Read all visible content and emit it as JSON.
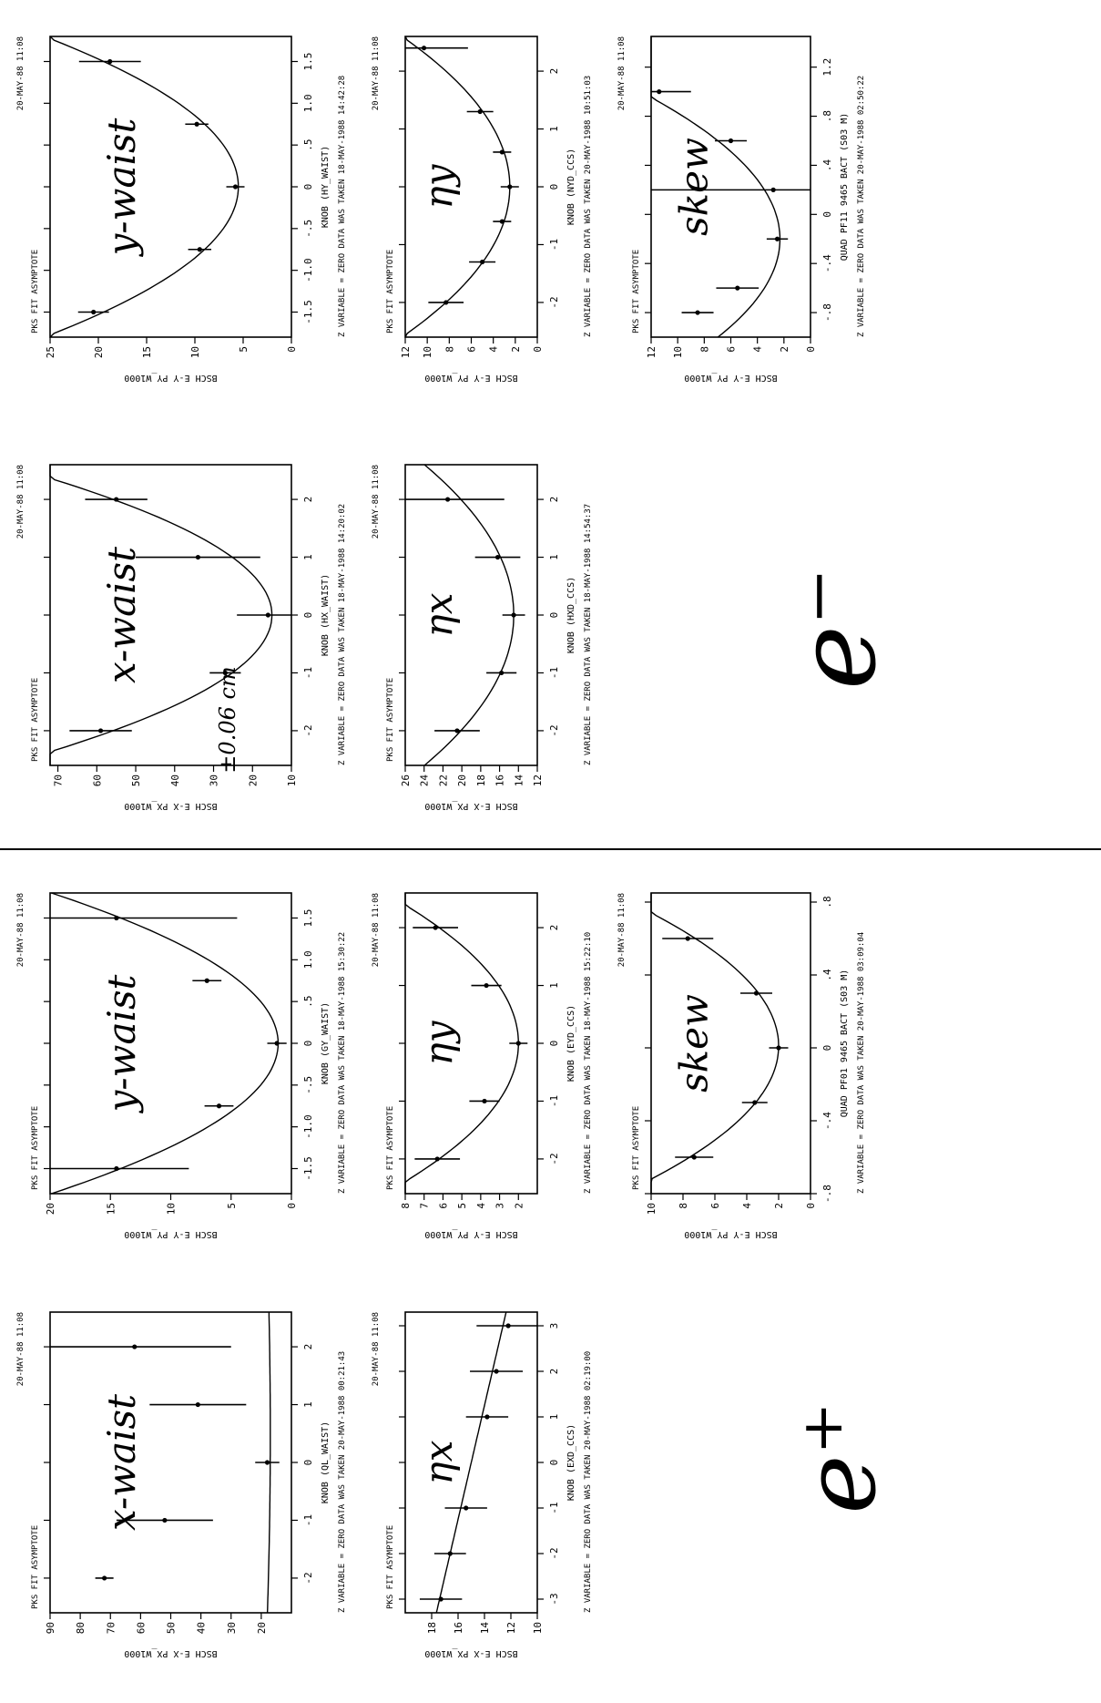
{
  "colors": {
    "ink": "#000000",
    "paper": "#ffffff"
  },
  "notes": {
    "electron": "e⁻",
    "positron": "e⁺",
    "correction": "±0.06 cm"
  },
  "chart_data": [
    {
      "id": "p1",
      "type": "scatter",
      "note": "x-waist",
      "fit": "parabola",
      "fit_label": "PKS FIT ASYMPTOTE",
      "xlabel": "KNOB (QL_WAIST)",
      "ylabel": "BSCH E-X PX_W1000",
      "xlim": [
        -2.6,
        2.6
      ],
      "ylim": [
        10,
        90
      ],
      "xticks": [
        "-2",
        "-1",
        "0",
        "1",
        "2"
      ],
      "yticks": [
        "90",
        "80",
        "70",
        "60",
        "50",
        "40",
        "30",
        "20"
      ],
      "x": [
        -2,
        -1,
        0,
        1,
        2
      ],
      "y": [
        72,
        52,
        18,
        41,
        62
      ],
      "err": [
        0,
        4,
        1,
        4,
        8
      ],
      "curve": [
        0.1,
        0.5,
        17
      ],
      "footer": "Z VARIABLE = ZERO   DATA WAS TAKEN  20-MAY-1988 00:21:43",
      "stamp": "20-MAY-88 11:08"
    },
    {
      "id": "p2",
      "type": "scatter",
      "note": "ηx",
      "fit": "line",
      "fit_label": "PKS FIT ASYMPTOTE",
      "xlabel": "KNOB (EXD_CCS)",
      "ylabel": "BSCH E-X PX_W1000",
      "xlim": [
        -3.3,
        3.3
      ],
      "ylim": [
        10,
        20
      ],
      "xticks": [
        "-3",
        "-2",
        "-1",
        "0",
        "1",
        "2",
        "3"
      ],
      "yticks": [
        "18",
        "16",
        "14",
        "12",
        "10"
      ],
      "x": [
        -3,
        -2,
        -1,
        1,
        2,
        3
      ],
      "y": [
        17.3,
        16.6,
        15.4,
        13.8,
        13.1,
        12.2
      ],
      "err": [
        0.4,
        0.3,
        0.4,
        0.4,
        0.5,
        0.6
      ],
      "curve": [
        0,
        -0.8,
        15
      ],
      "footer": "Z VARIABLE = ZERO   DATA WAS TAKEN  20-MAY-1988 02:19:00",
      "stamp": "20-MAY-88 11:08"
    },
    {
      "id": "p3",
      "type": "scatter",
      "note": "y-waist",
      "fit": "parabola",
      "fit_label": "PKS FIT ASYMPTOTE",
      "xlabel": "KNOB (GY_WAIST)",
      "ylabel": "BSCH E-Y PY_W1000",
      "xlim": [
        -1.8,
        1.8
      ],
      "ylim": [
        0,
        20
      ],
      "xticks": [
        "-1.5",
        "-1.0",
        "-.5",
        "0",
        ".5",
        "1.0",
        "1.5"
      ],
      "yticks": [
        "20",
        "15",
        "10",
        "5",
        "0"
      ],
      "x": [
        -1.5,
        -0.75,
        0,
        0.75,
        1.5
      ],
      "y": [
        14.5,
        6,
        1.2,
        7,
        14.5
      ],
      "err": [
        1.5,
        0.3,
        0.2,
        0.3,
        2.5
      ],
      "curve": [
        5.8,
        0,
        1.1
      ],
      "footer": "Z VARIABLE = ZERO   DATA WAS TAKEN  18-MAY-1988 15:30:22",
      "stamp": "20-MAY-88 11:08"
    },
    {
      "id": "p4",
      "type": "scatter",
      "note": "ηy",
      "fit": "parabola",
      "fit_label": "PKS FIT ASYMPTOTE",
      "xlabel": "KNOB (EYD_CCS)",
      "ylabel": "BSCH E-Y PY_W1000",
      "xlim": [
        -2.6,
        2.6
      ],
      "ylim": [
        1,
        8
      ],
      "xticks": [
        "-2",
        "-1",
        "0",
        "1",
        "2"
      ],
      "yticks": [
        "8",
        "7",
        "6",
        "5",
        "4",
        "3",
        "2"
      ],
      "x": [
        -2,
        -1,
        0,
        1,
        2
      ],
      "y": [
        6.3,
        3.8,
        2.0,
        3.7,
        6.4
      ],
      "err": [
        0.3,
        0.2,
        0.1,
        0.2,
        0.3
      ],
      "curve": [
        1.05,
        0,
        2.0
      ],
      "footer": "Z VARIABLE = ZERO   DATA WAS TAKEN  18-MAY-1988 15:22:10",
      "stamp": "20-MAY-88 11:08"
    },
    {
      "id": "p5",
      "type": "scatter",
      "note": "skew",
      "fit": "parabola",
      "fit_label": "PKS FIT ASYMPTOTE",
      "xlabel": "QUAD PF01 9465 BACT (S03 M)",
      "ylabel": "BSCH E-Y PY_W1000",
      "xlim": [
        -0.8,
        0.85
      ],
      "ylim": [
        0,
        10
      ],
      "xticks": [
        "-.8",
        "-.4",
        "0",
        ".4",
        ".8"
      ],
      "yticks": [
        "10",
        "8",
        "6",
        "4",
        "2",
        "0"
      ],
      "x": [
        -0.6,
        -0.3,
        0,
        0.3,
        0.6
      ],
      "y": [
        7.3,
        3.5,
        2.0,
        3.4,
        7.7
      ],
      "err": [
        0.3,
        0.2,
        0.15,
        0.25,
        0.4
      ],
      "curve": [
        15,
        0.01,
        2.0
      ],
      "footer": "Z VARIABLE = ZERO   DATA WAS TAKEN  20-MAY-1988 03:09:04",
      "stamp": "20-MAY-88 11:08"
    },
    {
      "id": "p6",
      "type": "scatter",
      "note": "x-waist",
      "fit": "parabola",
      "fit_label": "PKS FIT ASYMPTOTE",
      "xlabel": "KNOB (HX_WAIST)",
      "ylabel": "BSCH E-X PX_W1000",
      "xlim": [
        -2.6,
        2.6
      ],
      "ylim": [
        10,
        72
      ],
      "xticks": [
        "-2",
        "-1",
        "0",
        "1",
        "2"
      ],
      "yticks": [
        "70",
        "60",
        "50",
        "40",
        "30",
        "20",
        "10"
      ],
      "x": [
        -2,
        -1,
        0,
        1,
        2
      ],
      "y": [
        59,
        27,
        16,
        34,
        55
      ],
      "err": [
        2,
        1,
        2,
        4,
        2
      ],
      "curve": [
        10.2,
        0,
        15
      ],
      "footer": "Z VARIABLE = ZERO   DATA WAS TAKEN  18-MAY-1988 14:20:02",
      "stamp": "20-MAY-88 11:08"
    },
    {
      "id": "p7",
      "type": "scatter",
      "note": "ηx",
      "fit": "parabola",
      "fit_label": "PKS FIT ASYMPTOTE",
      "xlabel": "KNOB (HXD_CCS)",
      "ylabel": "BSCH E-X PX_W1000",
      "xlim": [
        -2.6,
        2.6
      ],
      "ylim": [
        12,
        26
      ],
      "xticks": [
        "-2",
        "-1",
        "0",
        "1",
        "2"
      ],
      "yticks": [
        "26",
        "24",
        "22",
        "20",
        "18",
        "16",
        "14",
        "12"
      ],
      "x": [
        -2,
        -1,
        0,
        1,
        2
      ],
      "y": [
        20.5,
        15.8,
        14.5,
        16.2,
        21.5
      ],
      "err": [
        0.6,
        0.4,
        0.3,
        0.6,
        1.5
      ],
      "curve": [
        1.4,
        0,
        14.5
      ],
      "footer": "Z VARIABLE = ZERO   DATA WAS TAKEN  18-MAY-1988 14:54:37",
      "stamp": "20-MAY-88 11:08"
    },
    {
      "id": "p8",
      "type": "scatter",
      "note": "y-waist",
      "fit": "parabola",
      "fit_label": "PKS FIT ASYMPTOTE",
      "xlabel": "KNOB (HY_WAIST)",
      "ylabel": "BSCH E-Y PY_W1000",
      "xlim": [
        -1.8,
        1.8
      ],
      "ylim": [
        0,
        25
      ],
      "xticks": [
        "-1.5",
        "-1.0",
        "-.5",
        "0",
        ".5",
        "1.0",
        "1.5"
      ],
      "yticks": [
        "25",
        "20",
        "15",
        "10",
        "5",
        "0"
      ],
      "x": [
        -1.5,
        -0.75,
        0,
        0.75,
        1.5
      ],
      "y": [
        20.5,
        9.5,
        5.8,
        9.8,
        18.8
      ],
      "err": [
        0.4,
        0.3,
        0.2,
        0.3,
        0.8
      ],
      "curve": [
        6.2,
        0,
        5.5
      ],
      "footer": "Z VARIABLE = ZERO   DATA WAS TAKEN  18-MAY-1988 14:42:28",
      "stamp": "20-MAY-88 11:08"
    },
    {
      "id": "p9",
      "type": "scatter",
      "note": "ηy",
      "fit": "parabola",
      "fit_label": "PKS FIT ASYMPTOTE",
      "xlabel": "KNOB (NYD_CCS)",
      "ylabel": "BSCH E-Y PY_W1000",
      "xlim": [
        -2.6,
        2.6
      ],
      "ylim": [
        0,
        12
      ],
      "xticks": [
        "-2",
        "-1",
        "0",
        "1",
        "2"
      ],
      "yticks": [
        "12",
        "10",
        "8",
        "6",
        "4",
        "2",
        "0"
      ],
      "x": [
        -2,
        -1.3,
        -0.6,
        0,
        0.6,
        1.3,
        2.4
      ],
      "y": [
        8.3,
        5.0,
        3.2,
        2.5,
        3.2,
        5.2,
        10.3
      ],
      "err": [
        0.4,
        0.3,
        0.2,
        0.2,
        0.2,
        0.3,
        1.0
      ],
      "curve": [
        1.45,
        0,
        2.5
      ],
      "footer": "Z VARIABLE = ZERO   DATA WAS TAKEN  20-MAY-1988 10:51:03",
      "stamp": "20-MAY-88 11:08"
    },
    {
      "id": "p10",
      "type": "scatter",
      "note": "skew",
      "fit": "parabola",
      "fit_label": "PKS FIT ASYMPTOTE",
      "xlabel": "QUAD PF11 9465 BACT (S03 M)",
      "ylabel": "BSCH E-Y PY_W1000",
      "xlim": [
        -1.0,
        1.45
      ],
      "ylim": [
        0,
        12
      ],
      "xticks": [
        "-.8",
        "-.4",
        "0",
        ".4",
        ".8",
        "1.2"
      ],
      "yticks": [
        "12",
        "10",
        "8",
        "6",
        "4",
        "2",
        "0"
      ],
      "x": [
        -0.8,
        -0.6,
        -0.2,
        0.2,
        0.6,
        1.0
      ],
      "y": [
        8.5,
        5.5,
        2.5,
        2.8,
        6.0,
        11.4
      ],
      "err": [
        0.3,
        0.4,
        0.2,
        2.5,
        0.3,
        0.6
      ],
      "curve": [
        7.3,
        -0.2,
        2.3
      ],
      "footer": "Z VARIABLE = ZERO   DATA WAS TAKEN  20-MAY-1988 02:50:22",
      "stamp": "20-MAY-88 11:08"
    }
  ]
}
